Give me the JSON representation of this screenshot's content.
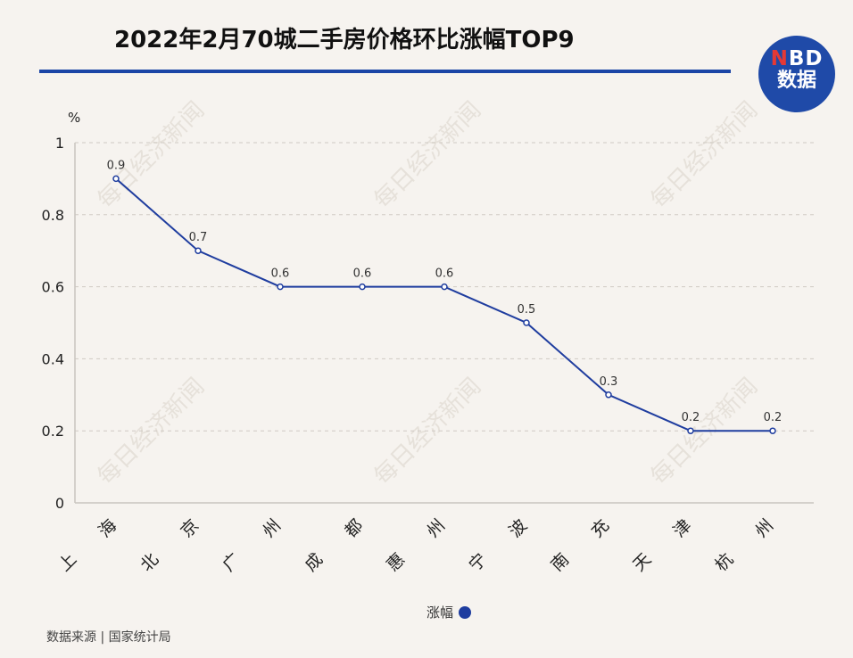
{
  "title": "2022年2月70城二手房价格环比涨幅TOP9",
  "logo": {
    "line1_red": "N",
    "line1_rest": "BD",
    "line2": "数据"
  },
  "watermark": "每日经济新闻",
  "source": "数据来源 | 国家统计局",
  "colors": {
    "line": "#1f3d9f",
    "title_rule": "#1b45a6",
    "logo_bg": "#1f4aa8",
    "background": "#f6f3ef"
  },
  "chart_data": {
    "type": "line",
    "title": "2022年2月70城二手房价格环比涨幅TOP9",
    "ylabel": "%",
    "xlabel": "",
    "categories": [
      "上海",
      "北京",
      "广州",
      "成都",
      "惠州",
      "宁波",
      "南充",
      "天津",
      "杭州"
    ],
    "series": [
      {
        "name": "涨幅",
        "values": [
          0.9,
          0.7,
          0.6,
          0.6,
          0.6,
          0.5,
          0.3,
          0.2,
          0.2
        ]
      }
    ],
    "data_labels": [
      "0.9",
      "0.7",
      "0.6",
      "0.6",
      "0.6",
      "0.5",
      "0.3",
      "0.2",
      "0.2"
    ],
    "y_ticks": [
      "0",
      "0.2",
      "0.4",
      "0.6",
      "0.8",
      "1"
    ],
    "ylim": [
      0,
      1
    ],
    "grid": "horizontal dashed",
    "legend_position": "bottom-center"
  }
}
